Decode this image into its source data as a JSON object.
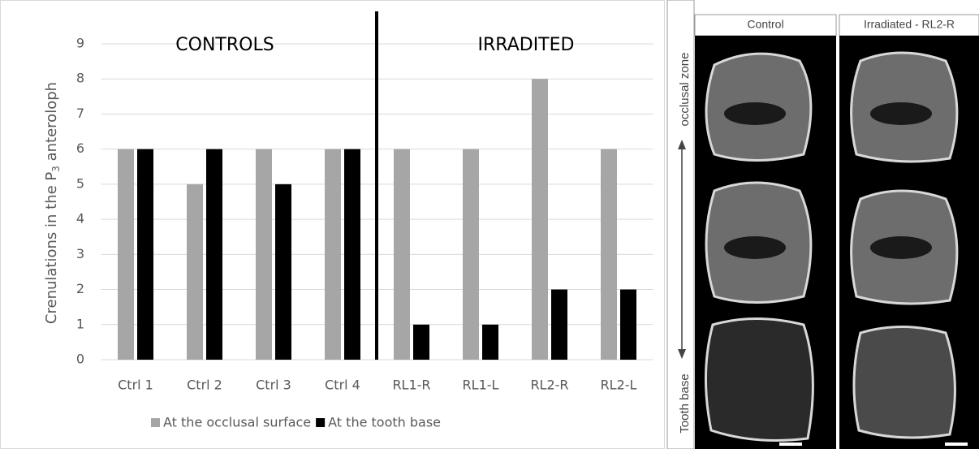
{
  "chart_data": {
    "type": "bar",
    "y_label": "Crenulations in the P",
    "y_label_sub": "3",
    "y_label_end": " anteroloph",
    "annotations": [
      "CONTROLS",
      "IRRADITED"
    ],
    "categories": [
      "Ctrl 1",
      "Ctrl 2",
      "Ctrl 3",
      "Ctrl 4",
      "RL1-R",
      "RL1-L",
      "RL2-R",
      "RL2-L"
    ],
    "series": [
      {
        "name": "At the occlusal surface",
        "color": "#a6a6a6",
        "values": [
          6,
          5,
          6,
          6,
          6,
          6,
          8,
          6
        ]
      },
      {
        "name": "At the tooth base",
        "color": "#000000",
        "values": [
          6,
          6,
          5,
          6,
          1,
          1,
          2,
          2
        ]
      }
    ],
    "ylim": [
      0,
      9
    ],
    "yticks": [
      0,
      1,
      2,
      3,
      4,
      5,
      6,
      7,
      8,
      9
    ],
    "grid": true,
    "legend": "bottom"
  },
  "image_panel": {
    "columns": [
      "Control",
      "Irradiated - RL2-R"
    ],
    "side_top": "occlusal zone",
    "side_bottom": "Tooth base"
  }
}
